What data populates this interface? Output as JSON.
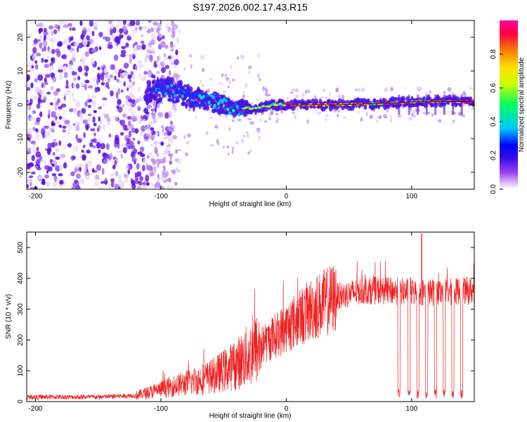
{
  "title": "S197.2026.002.17.43.R15",
  "chart_data": [
    {
      "type": "heatmap",
      "name": "spectrogram",
      "xlabel": "Height of straight line (km)",
      "ylabel": "Frequency (Hz)",
      "xlim": [
        -207,
        150
      ],
      "ylim": [
        -25,
        25
      ],
      "x_ticks": [
        -200,
        -100,
        0,
        100
      ],
      "y_ticks": [
        -20,
        -10,
        0,
        10,
        20
      ],
      "colorbar": {
        "label": "Normalized spectral amplitude",
        "range": [
          0,
          1
        ],
        "ticks": [
          0.0,
          0.2,
          0.4,
          0.6,
          0.8
        ],
        "tick_labels": [
          "0.0",
          "0.2",
          "0.4",
          "0.6",
          "0.8"
        ],
        "colormap": [
          "#ffffff",
          "#d8b8f8",
          "#9a40f0",
          "#3a10e8",
          "#0000ff",
          "#00c8ff",
          "#00ff60",
          "#c8ff00",
          "#ffe000",
          "#ff8000",
          "#ff0040",
          "#ff00a0"
        ]
      },
      "description_signal": {
        "noise_region_x": [
          -207,
          -110
        ],
        "ridge": [
          {
            "x": -110,
            "f": 5
          },
          {
            "x": -90,
            "f": 4
          },
          {
            "x": -75,
            "f": 2
          },
          {
            "x": -60,
            "f": 1
          },
          {
            "x": -40,
            "f": -1
          },
          {
            "x": -25,
            "f": -1
          },
          {
            "x": -10,
            "f": 0
          },
          {
            "x": 10,
            "f": 0
          },
          {
            "x": 40,
            "f": 0
          },
          {
            "x": 80,
            "f": 0.5
          },
          {
            "x": 110,
            "f": 1
          },
          {
            "x": 150,
            "f": 1
          }
        ]
      }
    },
    {
      "type": "line",
      "name": "snr",
      "xlabel": "Height of straight line (km)",
      "ylabel": "SNR (10 * v/v)",
      "xlim": [
        -207,
        150
      ],
      "ylim": [
        0,
        550
      ],
      "x_ticks": [
        -200,
        -100,
        0,
        100
      ],
      "y_ticks": [
        0,
        100,
        200,
        300,
        400,
        500
      ],
      "color": "#ee2222",
      "envelope": [
        {
          "x": -207,
          "y": 15
        },
        {
          "x": -150,
          "y": 15
        },
        {
          "x": -120,
          "y": 20
        },
        {
          "x": -100,
          "y": 40
        },
        {
          "x": -80,
          "y": 60
        },
        {
          "x": -60,
          "y": 80
        },
        {
          "x": -40,
          "y": 120
        },
        {
          "x": -20,
          "y": 180
        },
        {
          "x": 0,
          "y": 240
        },
        {
          "x": 20,
          "y": 300
        },
        {
          "x": 40,
          "y": 340
        },
        {
          "x": 60,
          "y": 360
        },
        {
          "x": 80,
          "y": 360
        },
        {
          "x": 100,
          "y": 355
        },
        {
          "x": 120,
          "y": 355
        },
        {
          "x": 150,
          "y": 360
        }
      ],
      "peaks": [
        {
          "x": 108,
          "y": 545
        }
      ],
      "dropouts_x": [
        90,
        98,
        105,
        112,
        119,
        126,
        133,
        140
      ]
    }
  ]
}
